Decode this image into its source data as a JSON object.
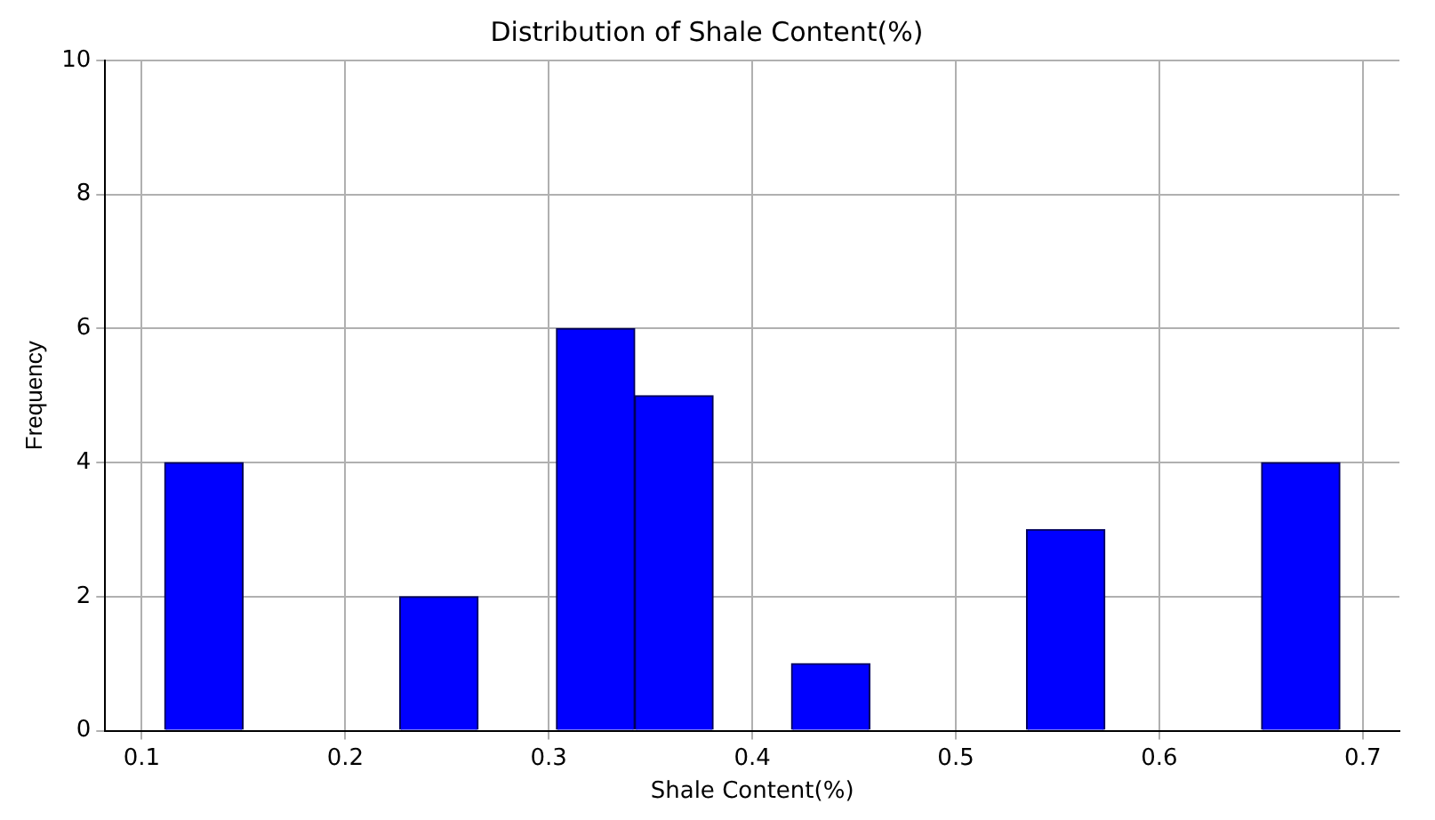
{
  "chart_data": {
    "type": "histogram",
    "title": "Distribution of Shale Content(%)",
    "xlabel": "Shale Content(%)",
    "ylabel": "Frequency",
    "bins": [
      0.111,
      0.15,
      0.188,
      0.227,
      0.265,
      0.304,
      0.342,
      0.381,
      0.419,
      0.458,
      0.496,
      0.535,
      0.573,
      0.612,
      0.65,
      0.689
    ],
    "values": [
      4,
      0,
      0,
      2,
      0,
      6,
      5,
      0,
      1,
      0,
      0,
      3,
      0,
      0,
      4
    ],
    "color": "#0000ff",
    "xlim": [
      0.082,
      0.718
    ],
    "xticks": [
      0.1,
      0.2,
      0.3,
      0.4,
      0.5,
      0.6,
      0.7
    ],
    "ylim": [
      0,
      10
    ],
    "yticks": [
      0,
      2,
      4,
      6,
      8,
      10
    ],
    "grid": true
  }
}
